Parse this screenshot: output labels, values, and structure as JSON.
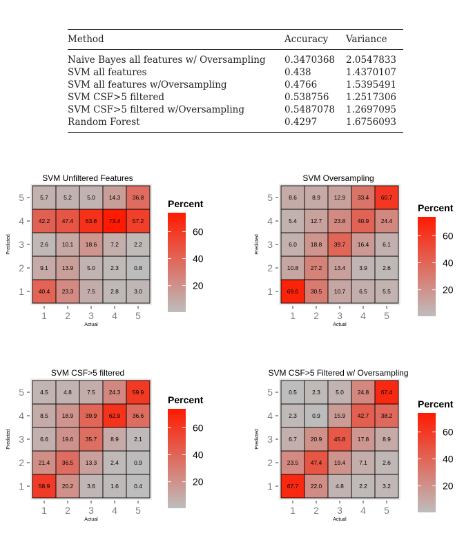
{
  "table": {
    "headers": [
      "Method",
      "Accuracy",
      "Variance"
    ],
    "rows": [
      [
        "Naive Bayes all features w/ Oversampling",
        "0.3470368",
        "2.0547833"
      ],
      [
        "SVM all features",
        "0.438",
        "1.4370107"
      ],
      [
        "SVM all features w/Oversampling",
        "0.4766",
        "1.5395491"
      ],
      [
        "SVM CSF>5 filtered",
        "0.538756",
        "1.2517306"
      ],
      [
        "SVM CSF>5 filtered w/Oversampling",
        "0.5487078",
        "1.2697095"
      ],
      [
        "Random Forest",
        "0.4297",
        "1.6756093"
      ]
    ]
  },
  "colors": {
    "low": "#bdbdbd",
    "high": "#ff1a00",
    "panel": "#ebebeb",
    "axis_text": "#7f7f7f"
  },
  "chart_data": [
    {
      "type": "heatmap",
      "title": "SVM Unfiltered Features",
      "xlabel": "Actual",
      "ylabel": "Predicted",
      "x_categories": [
        "1",
        "2",
        "3",
        "4",
        "5"
      ],
      "y_categories": [
        "1",
        "2",
        "3",
        "4",
        "5"
      ],
      "legend_title": "Percent",
      "legend_ticks": [
        20,
        40,
        60
      ],
      "values": [
        [
          40.4,
          23.3,
          7.5,
          2.8,
          3.0
        ],
        [
          9.1,
          13.9,
          5.0,
          2.3,
          0.8
        ],
        [
          2.6,
          10.1,
          18.6,
          7.2,
          2.2
        ],
        [
          42.2,
          47.4,
          63.8,
          73.4,
          57.2
        ],
        [
          5.7,
          5.2,
          5.0,
          14.3,
          36.8
        ]
      ]
    },
    {
      "type": "heatmap",
      "title": "SVM Oversampling",
      "xlabel": "Actual",
      "ylabel": "Predicted",
      "x_categories": [
        "1",
        "2",
        "3",
        "4",
        "5"
      ],
      "y_categories": [
        "1",
        "2",
        "3",
        "4",
        "5"
      ],
      "legend_title": "Percent",
      "legend_ticks": [
        20,
        40,
        60
      ],
      "values": [
        [
          69.6,
          30.5,
          10.7,
          6.5,
          5.5
        ],
        [
          10.8,
          27.2,
          13.4,
          3.9,
          2.6
        ],
        [
          6.0,
          18.8,
          39.7,
          16.4,
          6.1
        ],
        [
          5.4,
          12.7,
          23.8,
          40.9,
          24.4
        ],
        [
          8.6,
          8.9,
          12.9,
          33.4,
          60.7
        ]
      ]
    },
    {
      "type": "heatmap",
      "title": "SVM CSF>5 filtered",
      "xlabel": "Actual",
      "ylabel": "Predicted",
      "x_categories": [
        "1",
        "2",
        "3",
        "4",
        "5"
      ],
      "y_categories": [
        "1",
        "2",
        "3",
        "4",
        "5"
      ],
      "legend_title": "Percent",
      "legend_ticks": [
        20,
        40,
        60
      ],
      "values": [
        [
          58.9,
          20.2,
          3.6,
          1.6,
          0.4
        ],
        [
          21.4,
          36.5,
          13.3,
          2.4,
          0.9
        ],
        [
          6.6,
          19.6,
          35.7,
          8.9,
          2.1
        ],
        [
          8.5,
          18.9,
          39.9,
          62.9,
          36.6
        ],
        [
          4.5,
          4.8,
          7.5,
          24.3,
          59.9
        ]
      ]
    },
    {
      "type": "heatmap",
      "title": "SVM CSF>5 Filtered w/ Oversampling",
      "xlabel": "Actual",
      "ylabel": "Predicted",
      "x_categories": [
        "1",
        "2",
        "3",
        "4",
        "5"
      ],
      "y_categories": [
        "1",
        "2",
        "3",
        "4",
        "5"
      ],
      "legend_title": "Percent",
      "legend_ticks": [
        20,
        40,
        60
      ],
      "values": [
        [
          67.7,
          22.0,
          4.8,
          2.2,
          3.2
        ],
        [
          23.5,
          47.4,
          19.4,
          7.1,
          2.6
        ],
        [
          6.7,
          20.9,
          45.8,
          17.8,
          8.9
        ],
        [
          2.3,
          0.9,
          15.9,
          42.7,
          38.2
        ],
        [
          0.5,
          2.3,
          5.0,
          24.8,
          67.4
        ]
      ]
    }
  ]
}
